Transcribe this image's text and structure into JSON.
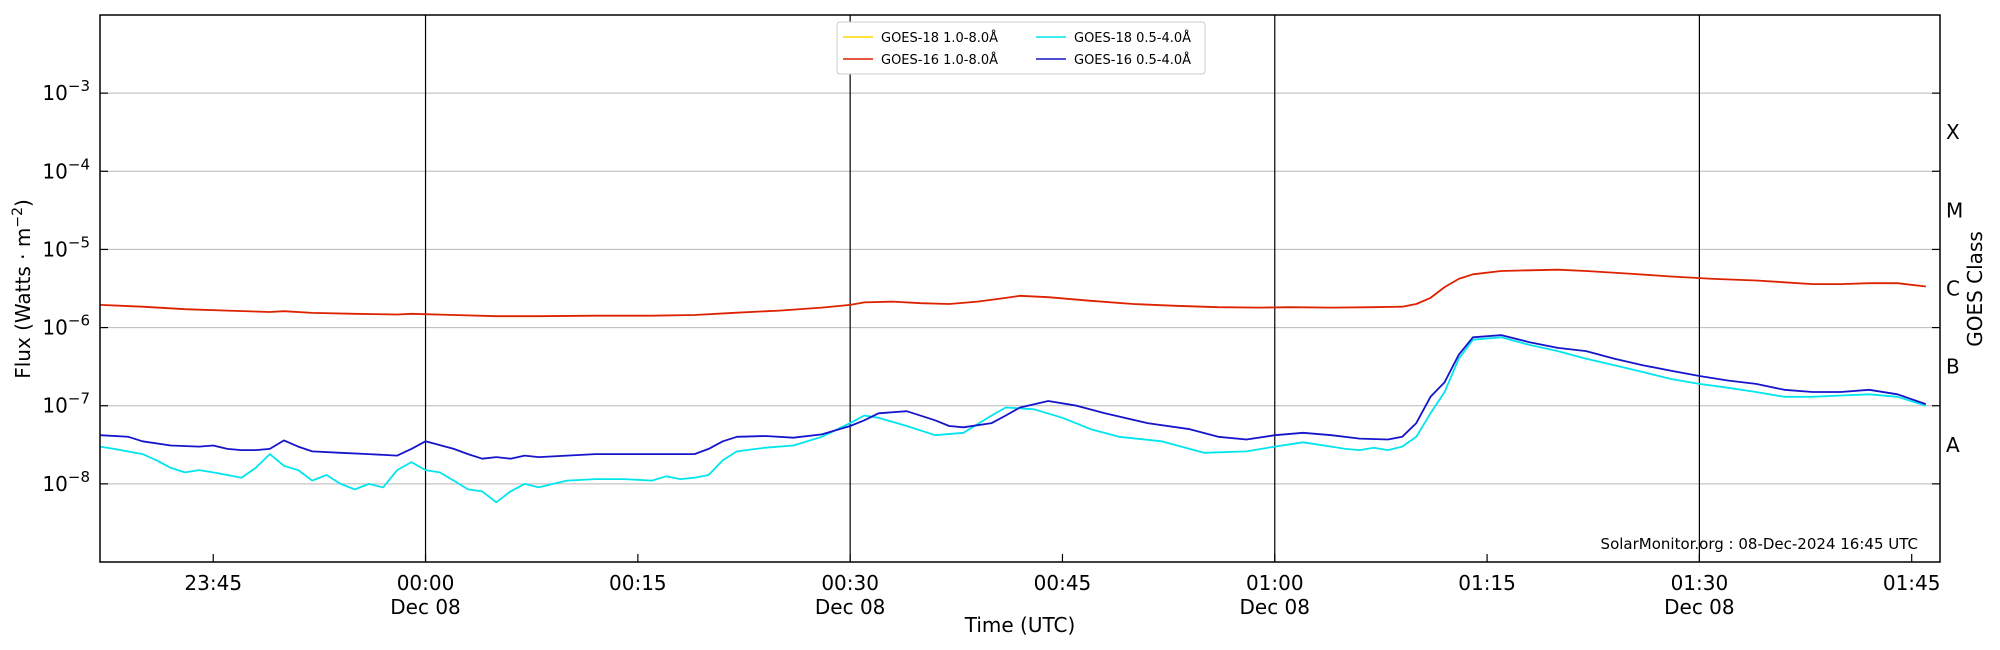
{
  "chart_data": {
    "type": "line",
    "xlabel": "Time (UTC)",
    "ylabel": "Flux (Watts · m",
    "ylabel_superscript": "−2",
    "ylabel_close": ")",
    "right_axis_label": "GOES Class",
    "yscale": "log",
    "ylim": [
      1e-09,
      0.01
    ],
    "xlim": [
      "2024-12-07 23:37",
      "2024-12-08 01:47"
    ],
    "grid": "horizontal lines at each decade; vertical lines at 00:00, 00:30, 01:00, 01:30",
    "legend_placement": "top-center",
    "y_ticks": [
      {
        "base": "10",
        "exp": "−8"
      },
      {
        "base": "10",
        "exp": "−7"
      },
      {
        "base": "10",
        "exp": "−6"
      },
      {
        "base": "10",
        "exp": "−5"
      },
      {
        "base": "10",
        "exp": "−4"
      },
      {
        "base": "10",
        "exp": "−3"
      }
    ],
    "y_tick_values": [
      1e-08,
      1e-07,
      1e-06,
      1e-05,
      0.0001,
      0.001
    ],
    "x_ticks": [
      {
        "time": "2024-12-07 23:45",
        "label": "23:45",
        "sublabel": ""
      },
      {
        "time": "2024-12-08 00:00",
        "label": "00:00",
        "sublabel": "Dec 08"
      },
      {
        "time": "2024-12-08 00:15",
        "label": "00:15",
        "sublabel": ""
      },
      {
        "time": "2024-12-08 00:30",
        "label": "00:30",
        "sublabel": "Dec 08"
      },
      {
        "time": "2024-12-08 00:45",
        "label": "00:45",
        "sublabel": ""
      },
      {
        "time": "2024-12-08 01:00",
        "label": "01:00",
        "sublabel": "Dec 08"
      },
      {
        "time": "2024-12-08 01:15",
        "label": "01:15",
        "sublabel": ""
      },
      {
        "time": "2024-12-08 01:30",
        "label": "01:30",
        "sublabel": "Dec 08"
      },
      {
        "time": "2024-12-08 01:45",
        "label": "01:45",
        "sublabel": ""
      }
    ],
    "goes_classes": [
      {
        "label": "A",
        "value": 3.16e-08
      },
      {
        "label": "B",
        "value": 3.16e-07
      },
      {
        "label": "C",
        "value": 3.16e-06
      },
      {
        "label": "M",
        "value": 3.16e-05
      },
      {
        "label": "X",
        "value": 0.000316
      }
    ],
    "annotation": "SolarMonitor.org : 08-Dec-2024 16:45 UTC",
    "series": [
      {
        "name": "GOES-18 1.0-8.0Å",
        "color": "#ffd700",
        "x": [],
        "y": []
      },
      {
        "name": "GOES-16 1.0-8.0Å",
        "color": "#dd2200",
        "x": [
          "2024-12-07 23:37",
          "2024-12-07 23:40",
          "2024-12-07 23:43",
          "2024-12-07 23:46",
          "2024-12-07 23:49",
          "2024-12-07 23:50",
          "2024-12-07 23:52",
          "2024-12-07 23:55",
          "2024-12-07 23:58",
          "2024-12-07 23:59",
          "2024-12-08 00:02",
          "2024-12-08 00:05",
          "2024-12-08 00:08",
          "2024-12-08 00:12",
          "2024-12-08 00:16",
          "2024-12-08 00:19",
          "2024-12-08 00:22",
          "2024-12-08 00:25",
          "2024-12-08 00:28",
          "2024-12-08 00:30",
          "2024-12-08 00:31",
          "2024-12-08 00:33",
          "2024-12-08 00:35",
          "2024-12-08 00:37",
          "2024-12-08 00:39",
          "2024-12-08 00:41",
          "2024-12-08 00:42",
          "2024-12-08 00:44",
          "2024-12-08 00:47",
          "2024-12-08 00:50",
          "2024-12-08 00:53",
          "2024-12-08 00:56",
          "2024-12-08 00:59",
          "2024-12-08 01:01",
          "2024-12-08 01:04",
          "2024-12-08 01:07",
          "2024-12-08 01:09",
          "2024-12-08 01:10",
          "2024-12-08 01:11",
          "2024-12-08 01:12",
          "2024-12-08 01:13",
          "2024-12-08 01:14",
          "2024-12-08 01:16",
          "2024-12-08 01:18",
          "2024-12-08 01:20",
          "2024-12-08 01:22",
          "2024-12-08 01:25",
          "2024-12-08 01:28",
          "2024-12-08 01:31",
          "2024-12-08 01:34",
          "2024-12-08 01:36",
          "2024-12-08 01:38",
          "2024-12-08 01:40",
          "2024-12-08 01:42",
          "2024-12-08 01:44",
          "2024-12-08 01:46"
        ],
        "y": [
          1.95e-06,
          1.85e-06,
          1.72e-06,
          1.65e-06,
          1.58e-06,
          1.62e-06,
          1.54e-06,
          1.5e-06,
          1.47e-06,
          1.5e-06,
          1.45e-06,
          1.4e-06,
          1.4e-06,
          1.42e-06,
          1.42e-06,
          1.45e-06,
          1.55e-06,
          1.65e-06,
          1.8e-06,
          1.95e-06,
          2.1e-06,
          2.15e-06,
          2.05e-06,
          2e-06,
          2.15e-06,
          2.4e-06,
          2.55e-06,
          2.45e-06,
          2.2e-06,
          2e-06,
          1.9e-06,
          1.82e-06,
          1.8e-06,
          1.82e-06,
          1.8e-06,
          1.82e-06,
          1.85e-06,
          2e-06,
          2.4e-06,
          3.3e-06,
          4.2e-06,
          4.8e-06,
          5.3e-06,
          5.4e-06,
          5.5e-06,
          5.3e-06,
          4.9e-06,
          4.5e-06,
          4.2e-06,
          4e-06,
          3.8e-06,
          3.6e-06,
          3.6e-06,
          3.7e-06,
          3.7e-06,
          3.35e-06
        ]
      },
      {
        "name": "GOES-18 0.5-4.0Å",
        "color": "#00e5ee",
        "x": [
          "2024-12-07 23:37",
          "2024-12-07 23:38",
          "2024-12-07 23:40",
          "2024-12-07 23:41",
          "2024-12-07 23:42",
          "2024-12-07 23:43",
          "2024-12-07 23:44",
          "2024-12-07 23:45",
          "2024-12-07 23:46",
          "2024-12-07 23:47",
          "2024-12-07 23:48",
          "2024-12-07 23:49",
          "2024-12-07 23:50",
          "2024-12-07 23:51",
          "2024-12-07 23:52",
          "2024-12-07 23:53",
          "2024-12-07 23:54",
          "2024-12-07 23:55",
          "2024-12-07 23:56",
          "2024-12-07 23:57",
          "2024-12-07 23:58",
          "2024-12-07 23:59",
          "2024-12-08 00:00",
          "2024-12-08 00:01",
          "2024-12-08 00:02",
          "2024-12-08 00:03",
          "2024-12-08 00:04",
          "2024-12-08 00:05",
          "2024-12-08 00:06",
          "2024-12-08 00:07",
          "2024-12-08 00:08",
          "2024-12-08 00:09",
          "2024-12-08 00:10",
          "2024-12-08 00:12",
          "2024-12-08 00:14",
          "2024-12-08 00:16",
          "2024-12-08 00:17",
          "2024-12-08 00:18",
          "2024-12-08 00:19",
          "2024-12-08 00:20",
          "2024-12-08 00:21",
          "2024-12-08 00:22",
          "2024-12-08 00:24",
          "2024-12-08 00:26",
          "2024-12-08 00:28",
          "2024-12-08 00:30",
          "2024-12-08 00:31",
          "2024-12-08 00:32",
          "2024-12-08 00:34",
          "2024-12-08 00:36",
          "2024-12-08 00:38",
          "2024-12-08 00:40",
          "2024-12-08 00:41",
          "2024-12-08 00:43",
          "2024-12-08 00:45",
          "2024-12-08 00:47",
          "2024-12-08 00:49",
          "2024-12-08 00:52",
          "2024-12-08 00:55",
          "2024-12-08 00:58",
          "2024-12-08 01:00",
          "2024-12-08 01:02",
          "2024-12-08 01:04",
          "2024-12-08 01:05",
          "2024-12-08 01:06",
          "2024-12-08 01:07",
          "2024-12-08 01:08",
          "2024-12-08 01:09",
          "2024-12-08 01:10",
          "2024-12-08 01:11",
          "2024-12-08 01:12",
          "2024-12-08 01:13",
          "2024-12-08 01:14",
          "2024-12-08 01:16",
          "2024-12-08 01:18",
          "2024-12-08 01:20",
          "2024-12-08 01:22",
          "2024-12-08 01:24",
          "2024-12-08 01:26",
          "2024-12-08 01:28",
          "2024-12-08 01:30",
          "2024-12-08 01:32",
          "2024-12-08 01:34",
          "2024-12-08 01:36",
          "2024-12-08 01:38",
          "2024-12-08 01:40",
          "2024-12-08 01:42",
          "2024-12-08 01:44",
          "2024-12-08 01:46"
        ],
        "y": [
          3e-08,
          2.8e-08,
          2.4e-08,
          2e-08,
          1.6e-08,
          1.4e-08,
          1.5e-08,
          1.4e-08,
          1.3e-08,
          1.2e-08,
          1.6e-08,
          2.4e-08,
          1.7e-08,
          1.5e-08,
          1.1e-08,
          1.3e-08,
          1e-08,
          8.5e-09,
          1e-08,
          9e-09,
          1.5e-08,
          1.9e-08,
          1.5e-08,
          1.4e-08,
          1.1e-08,
          8.5e-09,
          8e-09,
          5.8e-09,
          8e-09,
          1e-08,
          9e-09,
          1e-08,
          1.1e-08,
          1.15e-08,
          1.15e-08,
          1.1e-08,
          1.25e-08,
          1.15e-08,
          1.2e-08,
          1.3e-08,
          2e-08,
          2.6e-08,
          2.9e-08,
          3.1e-08,
          4e-08,
          6e-08,
          7.5e-08,
          7e-08,
          5.5e-08,
          4.2e-08,
          4.5e-08,
          7.5e-08,
          9.5e-08,
          9e-08,
          7e-08,
          5e-08,
          4e-08,
          3.5e-08,
          2.5e-08,
          2.6e-08,
          3e-08,
          3.4e-08,
          3e-08,
          2.8e-08,
          2.7e-08,
          2.9e-08,
          2.7e-08,
          3e-08,
          4e-08,
          8e-08,
          1.5e-07,
          4e-07,
          7e-07,
          7.5e-07,
          6e-07,
          5e-07,
          4e-07,
          3.3e-07,
          2.7e-07,
          2.2e-07,
          1.9e-07,
          1.7e-07,
          1.5e-07,
          1.3e-07,
          1.3e-07,
          1.35e-07,
          1.4e-07,
          1.3e-07,
          1e-07
        ]
      },
      {
        "name": "GOES-16 0.5-4.0Å",
        "color": "#1515cc",
        "x": [
          "2024-12-07 23:37",
          "2024-12-07 23:39",
          "2024-12-07 23:40",
          "2024-12-07 23:42",
          "2024-12-07 23:44",
          "2024-12-07 23:45",
          "2024-12-07 23:46",
          "2024-12-07 23:47",
          "2024-12-07 23:48",
          "2024-12-07 23:49",
          "2024-12-07 23:50",
          "2024-12-07 23:51",
          "2024-12-07 23:52",
          "2024-12-07 23:54",
          "2024-12-07 23:56",
          "2024-12-07 23:58",
          "2024-12-07 23:59",
          "2024-12-08 00:00",
          "2024-12-08 00:02",
          "2024-12-08 00:03",
          "2024-12-08 00:04",
          "2024-12-08 00:05",
          "2024-12-08 00:06",
          "2024-12-08 00:07",
          "2024-12-08 00:08",
          "2024-12-08 00:10",
          "2024-12-08 00:12",
          "2024-12-08 00:14",
          "2024-12-08 00:16",
          "2024-12-08 00:18",
          "2024-12-08 00:19",
          "2024-12-08 00:20",
          "2024-12-08 00:21",
          "2024-12-08 00:22",
          "2024-12-08 00:24",
          "2024-12-08 00:26",
          "2024-12-08 00:28",
          "2024-12-08 00:30",
          "2024-12-08 00:31",
          "2024-12-08 00:32",
          "2024-12-08 00:34",
          "2024-12-08 00:36",
          "2024-12-08 00:37",
          "2024-12-08 00:38",
          "2024-12-08 00:40",
          "2024-12-08 00:41",
          "2024-12-08 00:42",
          "2024-12-08 00:44",
          "2024-12-08 00:46",
          "2024-12-08 00:48",
          "2024-12-08 00:51",
          "2024-12-08 00:54",
          "2024-12-08 00:56",
          "2024-12-08 00:58",
          "2024-12-08 01:00",
          "2024-12-08 01:02",
          "2024-12-08 01:04",
          "2024-12-08 01:06",
          "2024-12-08 01:08",
          "2024-12-08 01:09",
          "2024-12-08 01:10",
          "2024-12-08 01:11",
          "2024-12-08 01:12",
          "2024-12-08 01:13",
          "2024-12-08 01:14",
          "2024-12-08 01:16",
          "2024-12-08 01:18",
          "2024-12-08 01:20",
          "2024-12-08 01:22",
          "2024-12-08 01:24",
          "2024-12-08 01:26",
          "2024-12-08 01:28",
          "2024-12-08 01:30",
          "2024-12-08 01:32",
          "2024-12-08 01:34",
          "2024-12-08 01:36",
          "2024-12-08 01:38",
          "2024-12-08 01:40",
          "2024-12-08 01:42",
          "2024-12-08 01:44",
          "2024-12-08 01:46"
        ],
        "y": [
          4.2e-08,
          4e-08,
          3.5e-08,
          3.1e-08,
          3e-08,
          3.1e-08,
          2.8e-08,
          2.7e-08,
          2.7e-08,
          2.8e-08,
          3.6e-08,
          3e-08,
          2.6e-08,
          2.5e-08,
          2.4e-08,
          2.3e-08,
          2.8e-08,
          3.5e-08,
          2.8e-08,
          2.4e-08,
          2.1e-08,
          2.2e-08,
          2.1e-08,
          2.3e-08,
          2.2e-08,
          2.3e-08,
          2.4e-08,
          2.4e-08,
          2.4e-08,
          2.4e-08,
          2.4e-08,
          2.8e-08,
          3.5e-08,
          4e-08,
          4.1e-08,
          3.9e-08,
          4.3e-08,
          5.5e-08,
          6.5e-08,
          8e-08,
          8.5e-08,
          6.5e-08,
          5.5e-08,
          5.3e-08,
          6e-08,
          7.5e-08,
          9.5e-08,
          1.15e-07,
          1e-07,
          8e-08,
          6e-08,
          5e-08,
          4e-08,
          3.7e-08,
          4.2e-08,
          4.5e-08,
          4.2e-08,
          3.8e-08,
          3.7e-08,
          4e-08,
          6e-08,
          1.3e-07,
          2e-07,
          4.5e-07,
          7.5e-07,
          8e-07,
          6.5e-07,
          5.5e-07,
          5e-07,
          4e-07,
          3.3e-07,
          2.8e-07,
          2.4e-07,
          2.1e-07,
          1.9e-07,
          1.6e-07,
          1.5e-07,
          1.5e-07,
          1.6e-07,
          1.4e-07,
          1.05e-07
        ]
      }
    ]
  }
}
